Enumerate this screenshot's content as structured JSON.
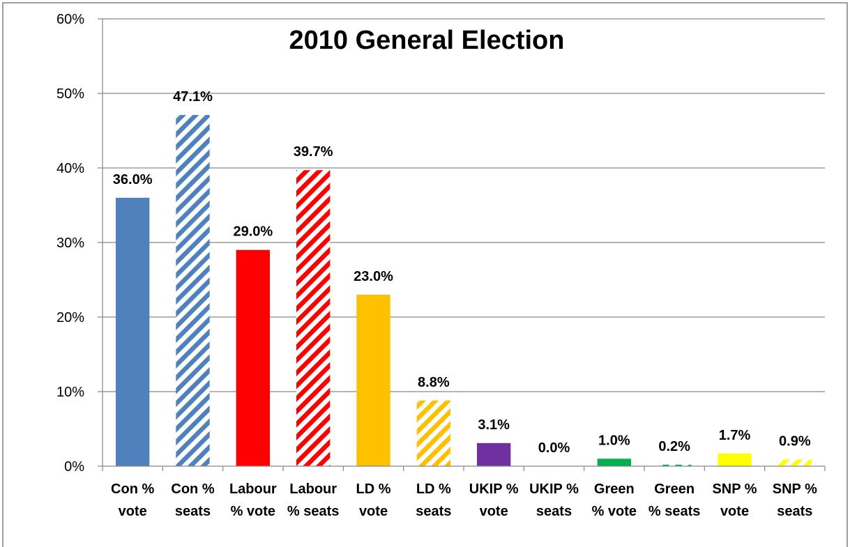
{
  "chart_data": {
    "type": "bar",
    "title": "2010 General Election",
    "xlabel": "",
    "ylabel": "",
    "ylim": [
      0,
      60
    ],
    "yticks": [
      0,
      10,
      20,
      30,
      40,
      50,
      60
    ],
    "ytick_labels": [
      "0%",
      "10%",
      "20%",
      "30%",
      "40%",
      "50%",
      "60%"
    ],
    "grid": true,
    "legend": "none",
    "categories": [
      [
        "Con %",
        "vote"
      ],
      [
        "Con %",
        "seats"
      ],
      [
        "Labour",
        "% vote"
      ],
      [
        "Labour",
        "% seats"
      ],
      [
        "LD %",
        "vote"
      ],
      [
        "LD %",
        "seats"
      ],
      [
        "UKIP %",
        "vote"
      ],
      [
        "UKIP %",
        "seats"
      ],
      [
        "Green",
        "% vote"
      ],
      [
        "Green",
        "% seats"
      ],
      [
        "SNP %",
        "vote"
      ],
      [
        "SNP %",
        "seats"
      ]
    ],
    "values": [
      36.0,
      47.1,
      29.0,
      39.7,
      23.0,
      8.8,
      3.1,
      0.0,
      1.0,
      0.2,
      1.7,
      0.9
    ],
    "data_labels": [
      "36.0%",
      "47.1%",
      "29.0%",
      "39.7%",
      "23.0%",
      "8.8%",
      "3.1%",
      "0.0%",
      "1.0%",
      "0.2%",
      "1.7%",
      "0.9%"
    ],
    "colors": [
      "#4f81bd",
      "#4f81bd",
      "#ff0000",
      "#ff0000",
      "#ffc000",
      "#ffc000",
      "#7030a0",
      "#7030a0",
      "#00b050",
      "#00b050",
      "#ffff00",
      "#ffff00"
    ],
    "hatched": [
      false,
      true,
      false,
      true,
      false,
      true,
      false,
      true,
      false,
      true,
      false,
      true
    ]
  }
}
